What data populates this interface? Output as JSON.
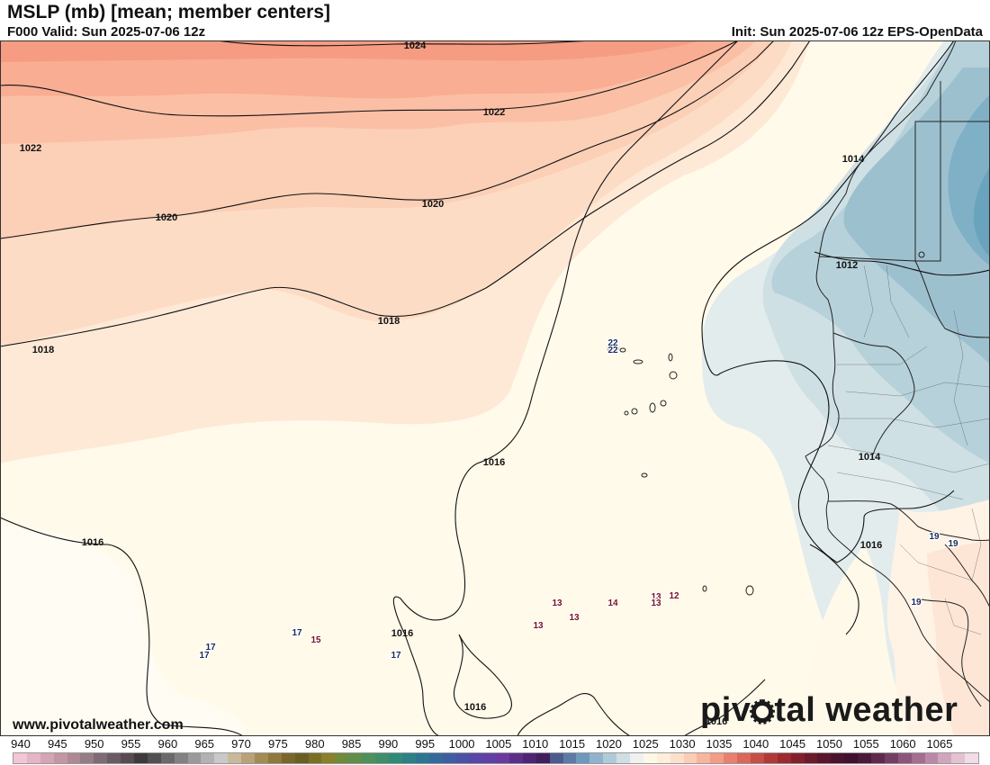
{
  "header": {
    "title": "MSLP (mb) [mean; member centers]",
    "valid": "F000 Valid: Sun 2025-07-06 12z",
    "init": "Init: Sun 2025-07-06 12z EPS-OpenData"
  },
  "footer": {
    "website": "www.pivotalweather.com",
    "brand_before": "piv",
    "brand_after": "tal weather"
  },
  "isobar_labels": [
    "1024",
    "1022",
    "1022",
    "1020",
    "1020",
    "1018",
    "1018",
    "1016",
    "1016",
    "1016",
    "1016",
    "1016",
    "1014",
    "1014",
    "1012",
    "1016"
  ],
  "member_centers": [
    "22",
    "22",
    "13",
    "14",
    "13",
    "12",
    "13",
    "13",
    "13",
    "17",
    "17",
    "17",
    "15",
    "17",
    "19",
    "19",
    "19"
  ],
  "colorbar": {
    "labels": [
      "940",
      "945",
      "950",
      "955",
      "960",
      "965",
      "970",
      "975",
      "980",
      "985",
      "990",
      "995",
      "1000",
      "1005",
      "1010",
      "1015",
      "1020",
      "1025",
      "1030",
      "1035",
      "1040",
      "1045",
      "1050",
      "1055",
      "1060",
      "1065"
    ],
    "colors": [
      "#f3c6d3",
      "#e4b5c4",
      "#d4a5b3",
      "#c197a3",
      "#ad8a94",
      "#977b85",
      "#7f6b74",
      "#6a5b62",
      "#564b51",
      "#3e3a3c",
      "#505050",
      "#6a6a6a",
      "#828282",
      "#9a9a9a",
      "#b2b2b2",
      "#c9c9c9",
      "#c9b99a",
      "#b8a277",
      "#a38b55",
      "#8f783c",
      "#7a652b",
      "#6a5f23",
      "#7a6f23",
      "#8a7f2b",
      "#6f8a3a",
      "#5e8e4a",
      "#4e8f5a",
      "#3f8e6a",
      "#2f8b78",
      "#2a8186",
      "#2c7691",
      "#346a9a",
      "#3e5ea1",
      "#4a52a6",
      "#5647a8",
      "#6140a6",
      "#6a3aa1",
      "#5b2e8a",
      "#4d2574",
      "#3f1f5e",
      "#4c5a8e",
      "#5b7aa8",
      "#6f98bd",
      "#8fb3cc",
      "#b0cbd8",
      "#cfdfe3",
      "#eef1ee",
      "#fef8e4",
      "#feeedb",
      "#fde0cb",
      "#fbcdb6",
      "#f8b59d",
      "#f39c86",
      "#e9806f",
      "#da6759",
      "#c64e47",
      "#b13a39",
      "#9a2b30",
      "#83202b",
      "#6d1a2b",
      "#5a162c",
      "#4a132d",
      "#3f112f",
      "#4a1a3b",
      "#5d2a4d",
      "#743e62",
      "#8c5579",
      "#a46e90",
      "#bb89a7",
      "#d1a6bd",
      "#e3c2d1",
      "#f1dde5"
    ]
  }
}
